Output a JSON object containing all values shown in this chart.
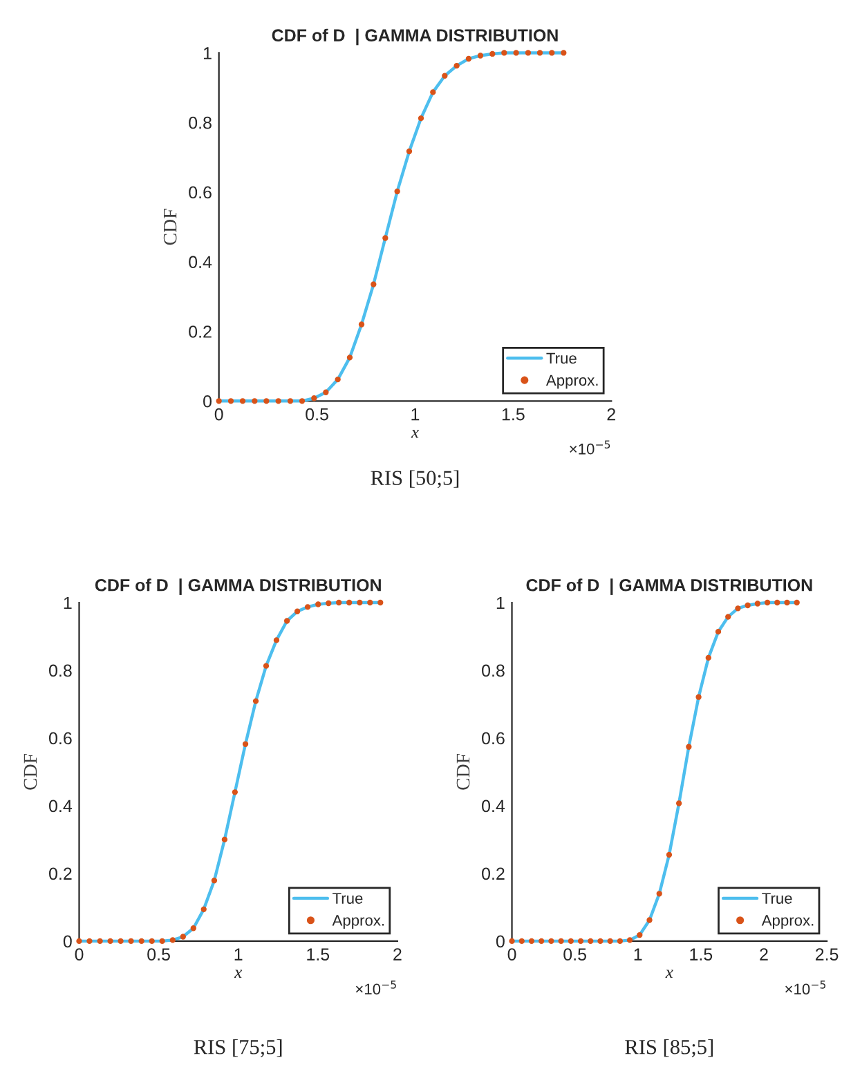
{
  "chart_data": [
    {
      "type": "line",
      "title": "CDF of D  | GAMMA DISTRIBUTION",
      "xlabel": "x",
      "ylabel": "CDF",
      "xlim": [
        0,
        2
      ],
      "xticks": [
        0,
        0.5,
        1,
        1.5,
        2
      ],
      "ylim": [
        0,
        1
      ],
      "yticks": [
        0,
        0.2,
        0.4,
        0.6,
        0.8,
        1
      ],
      "grid": false,
      "legend": "bottom right",
      "annotations": [
        "×10$^{−5}$",
        "RIS [50;5]"
      ],
      "x": [
        0,
        0.061,
        0.121,
        0.182,
        0.242,
        0.303,
        0.364,
        0.424,
        0.485,
        0.545,
        0.606,
        0.667,
        0.727,
        0.788,
        0.848,
        0.909,
        0.97,
        1.03,
        1.091,
        1.151,
        1.212,
        1.273,
        1.333,
        1.394,
        1.454,
        1.515,
        1.576,
        1.636,
        1.697,
        1.757
      ],
      "series": [
        {
          "name": "True",
          "type": "line",
          "color": "#4dbeee",
          "line_style": "solid",
          "marker": "none",
          "values": [
            0,
            0,
            0,
            0,
            0,
            0,
            0,
            0,
            0.008,
            0.025,
            0.062,
            0.125,
            0.22,
            0.335,
            0.468,
            0.602,
            0.717,
            0.812,
            0.887,
            0.934,
            0.963,
            0.983,
            0.992,
            0.997,
            1,
            1,
            1,
            1,
            1,
            1
          ]
        },
        {
          "name": "Approx.",
          "type": "scatter",
          "color": "#d95319",
          "marker": "circle",
          "values": [
            0,
            0,
            0,
            0,
            0,
            0,
            0,
            0,
            0.008,
            0.025,
            0.062,
            0.125,
            0.22,
            0.335,
            0.468,
            0.602,
            0.717,
            0.812,
            0.887,
            0.934,
            0.963,
            0.983,
            0.992,
            0.997,
            1,
            1,
            1,
            1,
            1,
            1
          ]
        }
      ]
    },
    {
      "type": "line",
      "title": "CDF of D  | GAMMA DISTRIBUTION",
      "xlabel": "x",
      "ylabel": "CDF",
      "xlim": [
        0,
        2
      ],
      "xticks": [
        0,
        0.5,
        1,
        1.5,
        2
      ],
      "ylim": [
        0,
        1
      ],
      "yticks": [
        0,
        0.2,
        0.4,
        0.6,
        0.8,
        1
      ],
      "grid": false,
      "legend": "bottom right",
      "annotations": [
        "×10$^{−5}$",
        "RIS [75;5]"
      ],
      "x": [
        0,
        0.065,
        0.131,
        0.196,
        0.261,
        0.326,
        0.392,
        0.457,
        0.522,
        0.588,
        0.653,
        0.718,
        0.783,
        0.849,
        0.914,
        0.979,
        1.045,
        1.11,
        1.175,
        1.24,
        1.306,
        1.371,
        1.436,
        1.502,
        1.567,
        1.632,
        1.697,
        1.763,
        1.828,
        1.893
      ],
      "series": [
        {
          "name": "True",
          "type": "line",
          "color": "#4dbeee",
          "line_style": "solid",
          "marker": "none",
          "values": [
            0,
            0,
            0,
            0,
            0,
            0,
            0,
            0,
            0,
            0.003,
            0.013,
            0.038,
            0.094,
            0.179,
            0.3,
            0.44,
            0.582,
            0.709,
            0.813,
            0.889,
            0.946,
            0.974,
            0.987,
            0.995,
            0.998,
            1,
            1,
            1,
            1,
            1
          ]
        },
        {
          "name": "Approx.",
          "type": "scatter",
          "color": "#d95319",
          "marker": "circle",
          "values": [
            0,
            0,
            0,
            0,
            0,
            0,
            0,
            0,
            0,
            0.003,
            0.013,
            0.038,
            0.094,
            0.179,
            0.3,
            0.44,
            0.582,
            0.709,
            0.813,
            0.889,
            0.946,
            0.974,
            0.987,
            0.995,
            0.998,
            1,
            1,
            1,
            1,
            1
          ]
        }
      ]
    },
    {
      "type": "line",
      "title": "CDF of D  | GAMMA DISTRIBUTION",
      "xlabel": "x",
      "ylabel": "CDF",
      "xlim": [
        0,
        2.5
      ],
      "xticks": [
        0,
        0.5,
        1,
        1.5,
        2,
        2.5
      ],
      "ylim": [
        0,
        1
      ],
      "yticks": [
        0,
        0.2,
        0.4,
        0.6,
        0.8,
        1
      ],
      "grid": false,
      "legend": "bottom right",
      "annotations": [
        "×10$^{−5}$",
        "RIS [85;5]"
      ],
      "x": [
        0,
        0.078,
        0.156,
        0.234,
        0.312,
        0.39,
        0.468,
        0.546,
        0.624,
        0.702,
        0.78,
        0.858,
        0.936,
        1.014,
        1.092,
        1.17,
        1.248,
        1.326,
        1.404,
        1.482,
        1.56,
        1.638,
        1.716,
        1.794,
        1.872,
        1.95,
        2.028,
        2.106,
        2.184,
        2.262
      ],
      "series": [
        {
          "name": "True",
          "type": "line",
          "color": "#4dbeee",
          "line_style": "solid",
          "marker": "none",
          "values": [
            0,
            0,
            0,
            0,
            0,
            0,
            0,
            0,
            0,
            0,
            0,
            0,
            0.003,
            0.018,
            0.062,
            0.14,
            0.255,
            0.407,
            0.574,
            0.721,
            0.837,
            0.914,
            0.958,
            0.983,
            0.992,
            0.997,
            1,
            1,
            1,
            1
          ]
        },
        {
          "name": "Approx.",
          "type": "scatter",
          "color": "#d95319",
          "marker": "circle",
          "values": [
            0,
            0,
            0,
            0,
            0,
            0,
            0,
            0,
            0,
            0,
            0,
            0,
            0.003,
            0.018,
            0.062,
            0.14,
            0.255,
            0.407,
            0.574,
            0.721,
            0.837,
            0.914,
            0.958,
            0.983,
            0.992,
            0.997,
            1,
            1,
            1,
            1
          ]
        }
      ]
    }
  ]
}
